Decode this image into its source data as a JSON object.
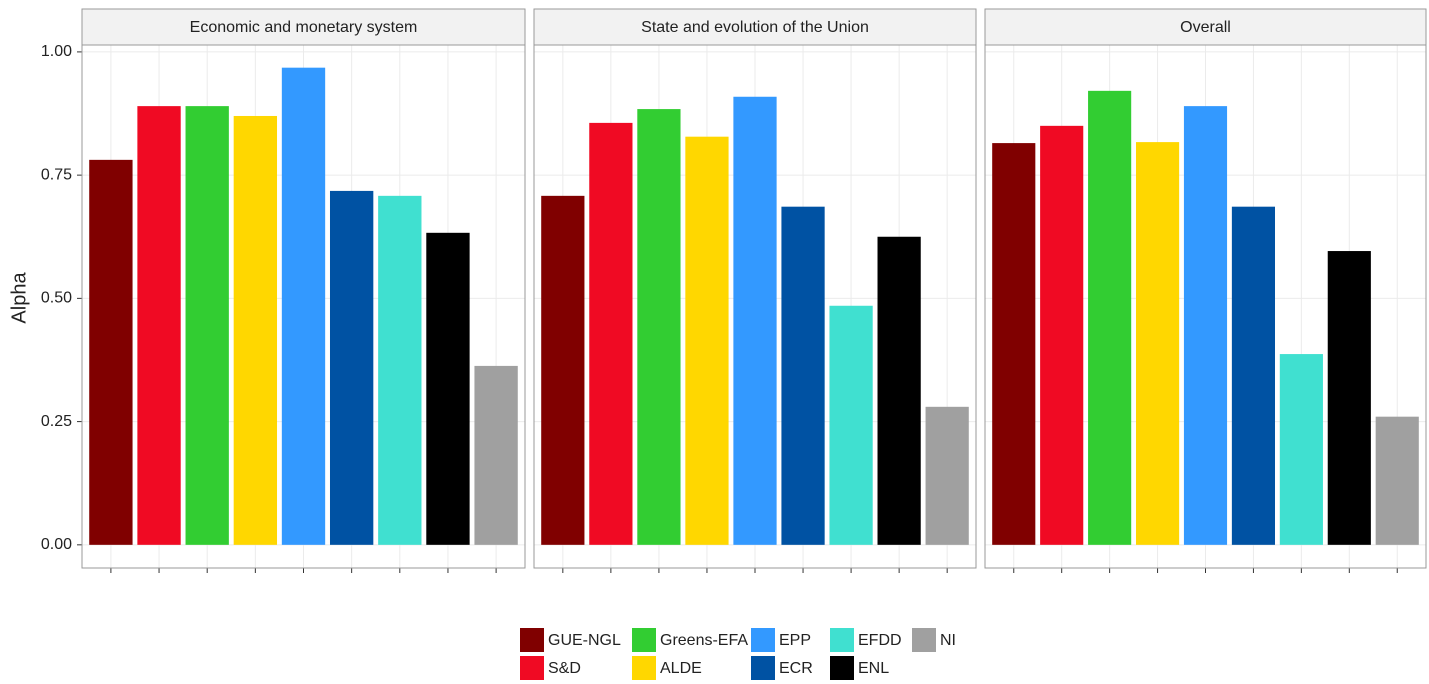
{
  "chart_data": {
    "type": "bar",
    "y_label": "Alpha",
    "ylim": [
      -0.047,
      1.014
    ],
    "yticks": [
      {
        "value": 0,
        "label": "0.00"
      },
      {
        "value": 0.25,
        "label": "0.25"
      },
      {
        "value": 0.5,
        "label": "0.50"
      },
      {
        "value": 0.75,
        "label": "0.75"
      },
      {
        "value": 1,
        "label": "1.00"
      }
    ],
    "grid": true,
    "groups": [
      {
        "name": "GUE-NGL",
        "color": "#800000"
      },
      {
        "name": "S&D",
        "color": "#f00a23"
      },
      {
        "name": "Greens-EFA",
        "color": "#32cd32"
      },
      {
        "name": "ALDE",
        "color": "#ffd700"
      },
      {
        "name": "EPP",
        "color": "#3399ff"
      },
      {
        "name": "ECR",
        "color": "#0052a3"
      },
      {
        "name": "EFDD",
        "color": "#40e0d0"
      },
      {
        "name": "ENL",
        "color": "#000000"
      },
      {
        "name": "NI",
        "color": "#a0a0a0"
      }
    ],
    "facets": [
      {
        "title": "Economic and monetary system",
        "values": [
          0.781,
          0.89,
          0.89,
          0.87,
          0.968,
          0.718,
          0.708,
          0.633,
          0.363
        ]
      },
      {
        "title": "State and evolution of the Union",
        "values": [
          0.708,
          0.856,
          0.884,
          0.828,
          0.909,
          0.686,
          0.485,
          0.625,
          0.28
        ]
      },
      {
        "title": "Overall",
        "values": [
          0.815,
          0.85,
          0.921,
          0.817,
          0.89,
          0.686,
          0.387,
          0.596,
          0.26
        ]
      }
    ]
  }
}
